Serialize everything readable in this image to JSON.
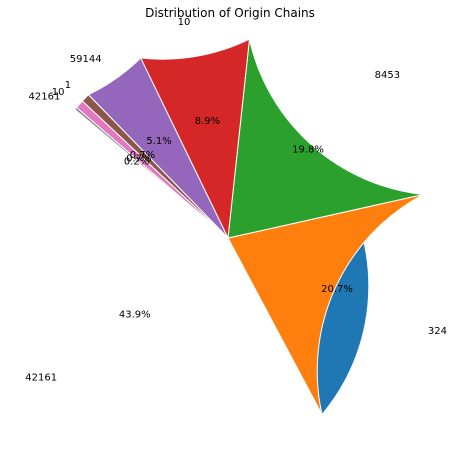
{
  "chart_data": {
    "type": "pie",
    "title": "Distribution of Origin Chains",
    "start_angle_deg": 140,
    "slices": [
      {
        "label": "42161",
        "value": 43.9,
        "pct_label": "43.9%",
        "color": "#1f77b4"
      },
      {
        "label": "324",
        "value": 20.7,
        "pct_label": "20.7%",
        "color": "#ff7f0e"
      },
      {
        "label": "8453",
        "value": 19.8,
        "pct_label": "19.8%",
        "color": "#2ca02c"
      },
      {
        "label": "10",
        "value": 8.9,
        "pct_label": "8.9%",
        "color": "#d62728"
      },
      {
        "label": "59144",
        "value": 5.1,
        "pct_label": "5.1%",
        "color": "#9467bd"
      },
      {
        "label": "1",
        "value": 0.7,
        "pct_label": "0.7%",
        "color": "#8c564b"
      },
      {
        "label": "10",
        "value": 0.7,
        "pct_label": "0.7%",
        "color": "#e377c2"
      },
      {
        "label": "42161",
        "value": 0.2,
        "pct_label": "0.2%",
        "color": "#7f7f7f"
      }
    ]
  }
}
